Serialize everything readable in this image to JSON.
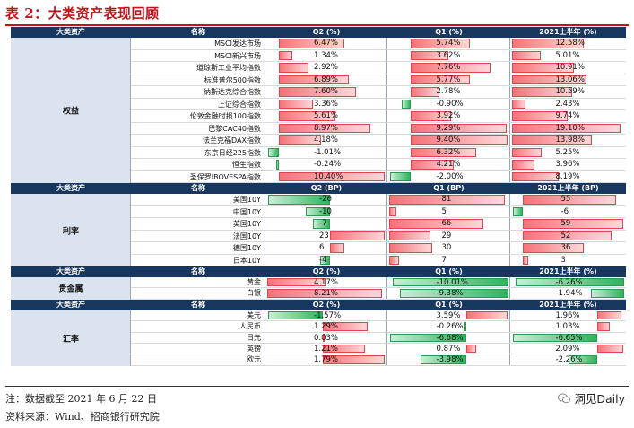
{
  "caption": "表 2：大类资产表现回顾",
  "note": "注：数据截至 2021 年 6 月 22 日",
  "source": "资料来源：Wind、招商银行研究院",
  "watermark": "洞见Daily",
  "colors": {
    "positive": "#f4737a",
    "negative": "#2fb35c",
    "header": "#17375e",
    "category": "#dbe3ef",
    "caption": "#c0141b"
  },
  "sections": [
    {
      "headers": [
        "大类资产",
        "名称",
        "Q2 (%)",
        "Q1 (%)",
        "2021上半年 (%)"
      ],
      "category": "权益",
      "rows": [
        {
          "name": "MSCI发达市场",
          "q2": "6.47%",
          "q1": "5.74%",
          "h1": "12.58%",
          "v": [
            6.47,
            5.74,
            12.58
          ]
        },
        {
          "name": "MSCI新兴市场",
          "q2": "1.34%",
          "q1": "3.62%",
          "h1": "5.01%",
          "v": [
            1.34,
            3.62,
            5.01
          ]
        },
        {
          "name": "道琼斯工业平均指数",
          "q2": "2.92%",
          "q1": "7.76%",
          "h1": "10.91%",
          "v": [
            2.92,
            7.76,
            10.91
          ]
        },
        {
          "name": "标准普尔500指数",
          "q2": "6.89%",
          "q1": "5.77%",
          "h1": "13.06%",
          "v": [
            6.89,
            5.77,
            13.06
          ]
        },
        {
          "name": "纳斯达克综合指数",
          "q2": "7.60%",
          "q1": "2.78%",
          "h1": "10.59%",
          "v": [
            7.6,
            2.78,
            10.59
          ]
        },
        {
          "name": "上证综合指数",
          "q2": "3.36%",
          "q1": "-0.90%",
          "h1": "2.43%",
          "v": [
            3.36,
            -0.9,
            2.43
          ]
        },
        {
          "name": "伦敦金融时报100指数",
          "q2": "5.61%",
          "q1": "3.92%",
          "h1": "9.74%",
          "v": [
            5.61,
            3.92,
            9.74
          ]
        },
        {
          "name": "巴黎CAC40指数",
          "q2": "8.97%",
          "q1": "9.29%",
          "h1": "19.10%",
          "v": [
            8.97,
            9.29,
            19.1
          ]
        },
        {
          "name": "法兰克福DAX指数",
          "q2": "4.18%",
          "q1": "9.40%",
          "h1": "13.98%",
          "v": [
            4.18,
            9.4,
            13.98
          ]
        },
        {
          "name": "东京日经225指数",
          "q2": "-1.01%",
          "q1": "6.32%",
          "h1": "5.25%",
          "v": [
            -1.01,
            6.32,
            5.25
          ]
        },
        {
          "name": "恒生指数",
          "q2": "-0.24%",
          "q1": "4.21%",
          "h1": "3.96%",
          "v": [
            -0.24,
            4.21,
            3.96
          ]
        },
        {
          "name": "圣保罗IBOVESPA指数",
          "q2": "10.40%",
          "q1": "-2.00%",
          "h1": "8.19%",
          "v": [
            10.4,
            -2.0,
            8.19
          ]
        }
      ]
    },
    {
      "headers": [
        "大类资产",
        "名称",
        "Q2 (BP)",
        "Q1 (BP)",
        "2021上半年 (BP)"
      ],
      "category": "利率",
      "rows": [
        {
          "name": "美国10Y",
          "q2": "-26",
          "q1": "81",
          "h1": "55",
          "v": [
            -26,
            81,
            55
          ]
        },
        {
          "name": "中国10Y",
          "q2": "-10",
          "q1": "5",
          "h1": "-6",
          "v": [
            -10,
            5,
            -6
          ]
        },
        {
          "name": "英国10Y",
          "q2": "-7",
          "q1": "66",
          "h1": "59",
          "v": [
            -7,
            66,
            59
          ]
        },
        {
          "name": "法国10Y",
          "q2": "23",
          "q1": "29",
          "h1": "52",
          "v": [
            23,
            29,
            52
          ]
        },
        {
          "name": "德国10Y",
          "q2": "6",
          "q1": "30",
          "h1": "36",
          "v": [
            6,
            30,
            36
          ]
        },
        {
          "name": "日本10Y",
          "q2": "-4",
          "q1": "7",
          "h1": "3",
          "v": [
            -4,
            7,
            3
          ]
        }
      ]
    },
    {
      "headers": [
        "大类资产",
        "名称",
        "Q2 (%)",
        "Q1 (%)",
        "2021上半年 (%)"
      ],
      "category": "贵金属",
      "rows": [
        {
          "name": "黄金",
          "q2": "4.17%",
          "q1": "-10.01%",
          "h1": "-6.26%",
          "v": [
            4.17,
            -10.01,
            -6.26
          ]
        },
        {
          "name": "白银",
          "q2": "8.21%",
          "q1": "-9.38%",
          "h1": "-1.94%",
          "v": [
            8.21,
            -9.38,
            -1.94
          ]
        }
      ]
    },
    {
      "headers": [
        "大类资产",
        "名称",
        "Q2 (%)",
        "Q1 (%)",
        "2021上半年 (%)"
      ],
      "category": "汇率",
      "rows": [
        {
          "name": "美元",
          "q2": "-1.57%",
          "q1": "3.59%",
          "h1": "1.96%",
          "v": [
            -1.57,
            3.59,
            1.96
          ]
        },
        {
          "name": "人民币",
          "q2": "1.29%",
          "q1": "-0.26%",
          "h1": "1.03%",
          "v": [
            1.29,
            -0.26,
            1.03
          ]
        },
        {
          "name": "日元",
          "q2": "0.03%",
          "q1": "-6.68%",
          "h1": "-6.65%",
          "v": [
            0.03,
            -6.68,
            -6.65
          ]
        },
        {
          "name": "英镑",
          "q2": "1.21%",
          "q1": "0.87%",
          "h1": "2.09%",
          "v": [
            1.21,
            0.87,
            2.09
          ]
        },
        {
          "name": "欧元",
          "q2": "1.79%",
          "q1": "-3.98%",
          "h1": "-2.26%",
          "v": [
            1.79,
            -3.98,
            -2.26
          ]
        }
      ]
    }
  ]
}
